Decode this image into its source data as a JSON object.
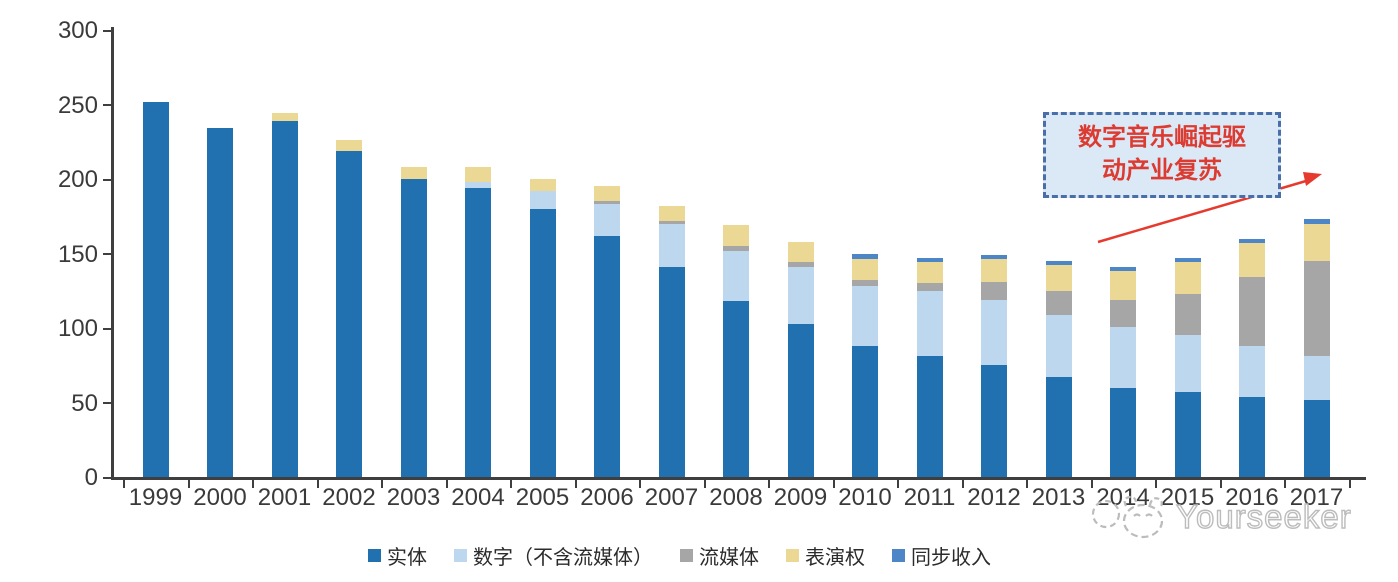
{
  "chart_data": {
    "type": "bar",
    "stacked": true,
    "title": "",
    "xlabel": "",
    "ylabel": "",
    "ylim": [
      0,
      300
    ],
    "yticks": [
      0,
      50,
      100,
      150,
      200,
      250,
      300
    ],
    "grid": false,
    "legend_position": "bottom",
    "categories": [
      "1999",
      "2000",
      "2001",
      "2002",
      "2003",
      "2004",
      "2005",
      "2006",
      "2007",
      "2008",
      "2009",
      "2010",
      "2011",
      "2012",
      "2013",
      "2014",
      "2015",
      "2016",
      "2017"
    ],
    "series": [
      {
        "name": "实体",
        "color": "#2171b0",
        "values": [
          252,
          234,
          239,
          219,
          200,
          194,
          180,
          162,
          141,
          118,
          103,
          88,
          81,
          75,
          67,
          60,
          57,
          54,
          52
        ]
      },
      {
        "name": "数字（不含流媒体）",
        "color": "#bdd7ee",
        "values": [
          0,
          0,
          0,
          0,
          0,
          4,
          12,
          21,
          29,
          34,
          38,
          40,
          44,
          44,
          42,
          41,
          38,
          34,
          29
        ]
      },
      {
        "name": "流媒体",
        "color": "#a6a6a6",
        "values": [
          0,
          0,
          0,
          0,
          0,
          0,
          0,
          2,
          2,
          3,
          3,
          4,
          5,
          12,
          16,
          18,
          28,
          46,
          64
        ]
      },
      {
        "name": "表演权",
        "color": "#ebd894",
        "values": [
          0,
          0,
          5,
          7,
          8,
          10,
          8,
          10,
          10,
          14,
          14,
          14,
          14,
          15,
          17,
          19,
          21,
          23,
          25
        ]
      },
      {
        "name": "同步收入",
        "color": "#4d86c6",
        "values": [
          0,
          0,
          0,
          0,
          0,
          0,
          0,
          0,
          0,
          0,
          0,
          4,
          3,
          3,
          3,
          3,
          3,
          3,
          3
        ]
      }
    ]
  },
  "annotation": {
    "line1": "数字音乐崛起驱",
    "line2": "动产业复苏",
    "text_color": "#dc3b32",
    "box_fill": "#dbe9f7",
    "box_border_color": "#4a6fa8",
    "arrow_color": "#e63a2e"
  },
  "watermark": {
    "brand": "Yourseeker",
    "logo_icon": "cat-face-logo",
    "color": "#bcbcbc"
  }
}
